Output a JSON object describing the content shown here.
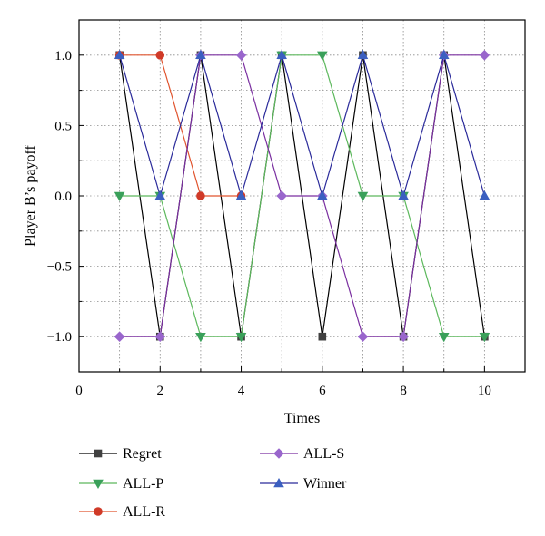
{
  "chart_data": {
    "type": "line",
    "title": "",
    "xlabel": "Times",
    "ylabel": "Player B’s payoff",
    "xlim": [
      0,
      11
    ],
    "ylim": [
      -1.25,
      1.25
    ],
    "xticks": [
      0,
      2,
      4,
      6,
      8,
      10
    ],
    "yticks": [
      1.0,
      0.5,
      0.0,
      -0.5,
      -1.0
    ],
    "ytick_labels": [
      "1.0",
      "0.5",
      "0.0",
      "−0.5",
      "−1.0"
    ],
    "grid": "dotted, major and minor",
    "legend_position": "bottom",
    "series": [
      {
        "name": "Regret",
        "color": "#000000",
        "marker": "square",
        "marker_color": "#404040",
        "x": [
          1,
          2,
          3,
          4,
          5,
          6,
          7,
          8,
          9,
          10
        ],
        "y": [
          1,
          -1,
          1,
          -1,
          1,
          -1,
          1,
          -1,
          1,
          -1
        ]
      },
      {
        "name": "ALL-P",
        "color": "#5cb85c",
        "marker": "triangle-down",
        "marker_color": "#3aa05a",
        "x": [
          1,
          2,
          3,
          4,
          5,
          6,
          7,
          8,
          9,
          10
        ],
        "y": [
          0,
          0,
          -1,
          -1,
          1,
          1,
          0,
          0,
          -1,
          -1
        ]
      },
      {
        "name": "ALL-R",
        "color": "#e0542e",
        "marker": "circle",
        "marker_color": "#d03a28",
        "x": [
          1,
          2,
          3,
          4
        ],
        "y": [
          1,
          1,
          0,
          0
        ]
      },
      {
        "name": "ALL-S",
        "color": "#7a2fa0",
        "marker": "diamond",
        "marker_color": "#9966cc",
        "x": [
          1,
          2,
          3,
          4,
          5,
          6,
          7,
          8,
          9,
          10
        ],
        "y": [
          -1,
          -1,
          1,
          1,
          0,
          0,
          -1,
          -1,
          1,
          1
        ]
      },
      {
        "name": "Winner",
        "color": "#2a2a9a",
        "marker": "triangle-up",
        "marker_color": "#3b5fc0",
        "x": [
          1,
          2,
          3,
          4,
          5,
          6,
          7,
          8,
          9,
          10
        ],
        "y": [
          1,
          0,
          1,
          0,
          1,
          0,
          1,
          0,
          1,
          0
        ]
      }
    ]
  }
}
